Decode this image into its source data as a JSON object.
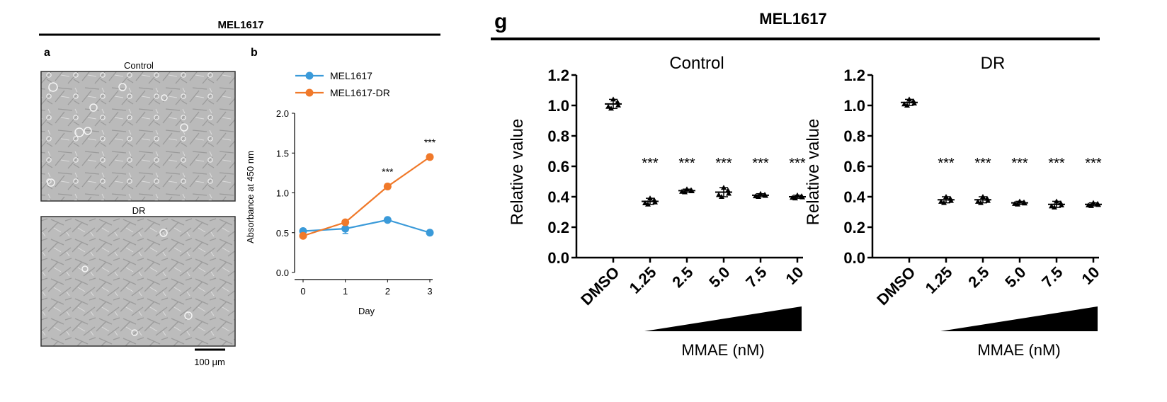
{
  "left_panel": {
    "header_title": "MEL1617",
    "panel_a": {
      "letter": "a",
      "images": [
        {
          "label": "Control",
          "kind": "phase-contrast micrograph"
        },
        {
          "label": "DR",
          "kind": "phase-contrast micrograph"
        }
      ],
      "scale_bar_label": "100 μm"
    }
  },
  "right_panel": {
    "letter": "g",
    "header_title": "MEL1617"
  },
  "colors": {
    "series_blue": "#3a9ad9",
    "series_orange": "#f0792a",
    "axis": "#000000",
    "micrograph_bg": "#b9b9b9"
  },
  "chart_data": [
    {
      "id": "b",
      "letter": "b",
      "type": "line",
      "xlabel": "Day",
      "ylabel": "Absorbance at 450 nm",
      "x": [
        0,
        1,
        2,
        3
      ],
      "xticks": [
        "0",
        "1",
        "2",
        "3"
      ],
      "ylim": [
        0,
        2.0
      ],
      "yticks": [
        "0.0",
        "0.5",
        "1.0",
        "1.5",
        "2.0"
      ],
      "legend_position": "top-left",
      "series": [
        {
          "name": "MEL1617",
          "color": "#3a9ad9",
          "values": [
            0.52,
            0.55,
            0.66,
            0.5
          ],
          "errors": [
            0.03,
            0.06,
            0.02,
            0.02
          ]
        },
        {
          "name": "MEL1617-DR",
          "color": "#f0792a",
          "values": [
            0.46,
            0.63,
            1.08,
            1.45
          ],
          "errors": [
            0.02,
            0.02,
            0.03,
            0.03
          ]
        }
      ],
      "annotations": [
        {
          "x": 2,
          "text": "***"
        },
        {
          "x": 3,
          "text": "***"
        }
      ]
    },
    {
      "id": "g-control",
      "type": "scatter",
      "title": "Control",
      "ylabel": "Relative value",
      "xlabel": "MMAE (nM)",
      "categories": [
        "DMSO",
        "1.25",
        "2.5",
        "5.0",
        "7.5",
        "10"
      ],
      "ylim": [
        0,
        1.2
      ],
      "yticks": [
        "0.0",
        "0.2",
        "0.4",
        "0.6",
        "0.8",
        "1.0",
        "1.2"
      ],
      "values": [
        1.01,
        0.37,
        0.44,
        0.43,
        0.41,
        0.4
      ],
      "spread": [
        0.03,
        0.02,
        0.01,
        0.03,
        0.01,
        0.01
      ],
      "significance": [
        "",
        "***",
        "***",
        "***",
        "***",
        "***"
      ]
    },
    {
      "id": "g-dr",
      "type": "scatter",
      "title": "DR",
      "ylabel": "Relative value",
      "xlabel": "MMAE (nM)",
      "categories": [
        "DMSO",
        "1.25",
        "2.5",
        "5.0",
        "7.5",
        "10"
      ],
      "ylim": [
        0,
        1.2
      ],
      "yticks": [
        "0.0",
        "0.2",
        "0.4",
        "0.6",
        "0.8",
        "1.0",
        "1.2"
      ],
      "values": [
        1.02,
        0.38,
        0.38,
        0.36,
        0.35,
        0.35
      ],
      "spread": [
        0.02,
        0.02,
        0.02,
        0.01,
        0.02,
        0.01
      ],
      "significance": [
        "",
        "***",
        "***",
        "***",
        "***",
        "***"
      ]
    }
  ]
}
